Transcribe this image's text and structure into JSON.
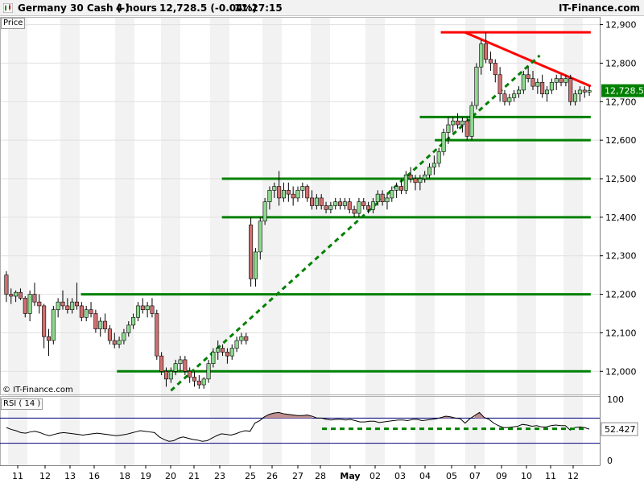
{
  "header": {
    "instrument": "Germany 30 Cash (-)",
    "timeframe": "4 hours",
    "quote": "12,728.5 (-0.04%)",
    "time": "11:27:15",
    "brand": "IT-Finance.com"
  },
  "price_panel_label": "Price",
  "rsi_panel_label": "RSI ( 14 )",
  "copyright": "© IT-Finance.com",
  "colors": {
    "bull": "#90d890",
    "bear": "#d07070",
    "support": "#008000",
    "resistance": "#ff0000",
    "rsi_line": "#000000",
    "rsi_fill": "#c09090",
    "rsi_band": "#000080",
    "last_price_bg": "#008000"
  },
  "chart_data": [
    {
      "type": "candlestick",
      "title": "Germany 30 Cash (-)",
      "ylabel": "Price",
      "ylim": [
        11940,
        12920
      ],
      "y_ticks": [
        "12,000",
        "12,100",
        "12,200",
        "12,300",
        "12,400",
        "12,500",
        "12,600",
        "12,700",
        "12,800",
        "12,900"
      ],
      "x_ticks": [
        "11",
        "12",
        "13",
        "16",
        "18",
        "19",
        "20",
        "21",
        "23",
        "25",
        "26",
        "27",
        "28",
        "May",
        "02",
        "03",
        "04",
        "05",
        "07",
        "09",
        "10",
        "11",
        "12"
      ],
      "last_price": "12,728.5",
      "candles": [
        [
          12250,
          12260,
          12180,
          12200
        ],
        [
          12200,
          12215,
          12175,
          12195
        ],
        [
          12195,
          12210,
          12180,
          12205
        ],
        [
          12205,
          12215,
          12185,
          12190
        ],
        [
          12190,
          12195,
          12140,
          12150
        ],
        [
          12150,
          12210,
          12130,
          12200
        ],
        [
          12200,
          12230,
          12170,
          12180
        ],
        [
          12180,
          12200,
          12150,
          12170
        ],
        [
          12170,
          12175,
          12060,
          12090
        ],
        [
          12090,
          12110,
          12040,
          12080
        ],
        [
          12080,
          12170,
          12070,
          12160
        ],
        [
          12160,
          12190,
          12140,
          12180
        ],
        [
          12180,
          12210,
          12160,
          12170
        ],
        [
          12170,
          12190,
          12150,
          12160
        ],
        [
          12160,
          12190,
          12150,
          12180
        ],
        [
          12180,
          12230,
          12160,
          12170
        ],
        [
          12170,
          12180,
          12130,
          12140
        ],
        [
          12140,
          12170,
          12130,
          12160
        ],
        [
          12160,
          12180,
          12140,
          12150
        ],
        [
          12150,
          12160,
          12100,
          12110
        ],
        [
          12110,
          12140,
          12090,
          12130
        ],
        [
          12130,
          12150,
          12100,
          12110
        ],
        [
          12110,
          12120,
          12070,
          12080
        ],
        [
          12080,
          12100,
          12060,
          12070
        ],
        [
          12070,
          12090,
          12060,
          12080
        ],
        [
          12080,
          12110,
          12070,
          12100
        ],
        [
          12100,
          12130,
          12090,
          12120
        ],
        [
          12120,
          12150,
          12110,
          12140
        ],
        [
          12140,
          12180,
          12130,
          12170
        ],
        [
          12170,
          12190,
          12150,
          12160
        ],
        [
          12160,
          12180,
          12140,
          12170
        ],
        [
          12170,
          12190,
          12140,
          12150
        ],
        [
          12150,
          12160,
          12030,
          12040
        ],
        [
          12040,
          12050,
          11990,
          12000
        ],
        [
          12000,
          12010,
          11960,
          11980
        ],
        [
          11980,
          12010,
          11970,
          12000
        ],
        [
          12000,
          12030,
          11990,
          12020
        ],
        [
          12020,
          12040,
          12000,
          12030
        ],
        [
          12030,
          12040,
          11990,
          12000
        ],
        [
          12000,
          12010,
          11970,
          11985
        ],
        [
          11985,
          12000,
          11960,
          11975
        ],
        [
          11975,
          11990,
          11955,
          11965
        ],
        [
          11965,
          11985,
          11955,
          11980
        ],
        [
          11980,
          12030,
          11970,
          12020
        ],
        [
          12020,
          12060,
          12010,
          12050
        ],
        [
          12050,
          12080,
          12030,
          12060
        ],
        [
          12060,
          12070,
          12040,
          12050
        ],
        [
          12050,
          12060,
          12020,
          12040
        ],
        [
          12040,
          12070,
          12030,
          12060
        ],
        [
          12060,
          12090,
          12050,
          12080
        ],
        [
          12080,
          12100,
          12070,
          12090
        ],
        [
          12090,
          12100,
          12070,
          12080
        ],
        [
          12380,
          12400,
          12220,
          12240
        ],
        [
          12240,
          12320,
          12220,
          12310
        ],
        [
          12310,
          12400,
          12290,
          12390
        ],
        [
          12390,
          12450,
          12380,
          12440
        ],
        [
          12440,
          12480,
          12420,
          12470
        ],
        [
          12470,
          12490,
          12450,
          12480
        ],
        [
          12480,
          12520,
          12430,
          12450
        ],
        [
          12450,
          12490,
          12440,
          12470
        ],
        [
          12470,
          12490,
          12440,
          12460
        ],
        [
          12460,
          12480,
          12430,
          12450
        ],
        [
          12450,
          12480,
          12440,
          12470
        ],
        [
          12470,
          12490,
          12450,
          12480
        ],
        [
          12480,
          12485,
          12440,
          12450
        ],
        [
          12450,
          12470,
          12420,
          12430
        ],
        [
          12430,
          12460,
          12420,
          12450
        ],
        [
          12450,
          12460,
          12420,
          12430
        ],
        [
          12430,
          12440,
          12410,
          12420
        ],
        [
          12420,
          12440,
          12410,
          12430
        ],
        [
          12430,
          12450,
          12420,
          12440
        ],
        [
          12440,
          12450,
          12420,
          12430
        ],
        [
          12430,
          12450,
          12420,
          12440
        ],
        [
          12440,
          12450,
          12410,
          12420
        ],
        [
          12420,
          12430,
          12400,
          12410
        ],
        [
          12410,
          12450,
          12400,
          12440
        ],
        [
          12440,
          12450,
          12420,
          12430
        ],
        [
          12430,
          12440,
          12410,
          12420
        ],
        [
          12420,
          12450,
          12410,
          12440
        ],
        [
          12440,
          12470,
          12430,
          12460
        ],
        [
          12460,
          12470,
          12430,
          12440
        ],
        [
          12440,
          12460,
          12420,
          12450
        ],
        [
          12450,
          12480,
          12440,
          12470
        ],
        [
          12470,
          12490,
          12450,
          12480
        ],
        [
          12480,
          12500,
          12460,
          12470
        ],
        [
          12470,
          12520,
          12460,
          12510
        ],
        [
          12510,
          12530,
          12490,
          12500
        ],
        [
          12500,
          12510,
          12470,
          12490
        ],
        [
          12490,
          12510,
          12470,
          12500
        ],
        [
          12500,
          12520,
          12490,
          12510
        ],
        [
          12510,
          12540,
          12500,
          12530
        ],
        [
          12530,
          12560,
          12510,
          12540
        ],
        [
          12540,
          12580,
          12530,
          12570
        ],
        [
          12570,
          12630,
          12560,
          12620
        ],
        [
          12620,
          12660,
          12590,
          12640
        ],
        [
          12640,
          12660,
          12620,
          12650
        ],
        [
          12650,
          12670,
          12630,
          12640
        ],
        [
          12640,
          12660,
          12620,
          12650
        ],
        [
          12650,
          12660,
          12600,
          12610
        ],
        [
          12610,
          12700,
          12600,
          12690
        ],
        [
          12690,
          12800,
          12680,
          12790
        ],
        [
          12790,
          12860,
          12770,
          12850
        ],
        [
          12850,
          12880,
          12800,
          12810
        ],
        [
          12810,
          12830,
          12780,
          12800
        ],
        [
          12800,
          12810,
          12750,
          12770
        ],
        [
          12770,
          12790,
          12700,
          12720
        ],
        [
          12720,
          12730,
          12690,
          12700
        ],
        [
          12700,
          12720,
          12690,
          12710
        ],
        [
          12710,
          12730,
          12700,
          12720
        ],
        [
          12720,
          12740,
          12710,
          12730
        ],
        [
          12730,
          12780,
          12720,
          12770
        ],
        [
          12770,
          12790,
          12750,
          12760
        ],
        [
          12760,
          12780,
          12730,
          12740
        ],
        [
          12740,
          12760,
          12720,
          12750
        ],
        [
          12750,
          12770,
          12710,
          12720
        ],
        [
          12720,
          12740,
          12700,
          12730
        ],
        [
          12730,
          12760,
          12720,
          12750
        ],
        [
          12750,
          12770,
          12730,
          12760
        ],
        [
          12760,
          12770,
          12740,
          12750
        ],
        [
          12750,
          12770,
          12740,
          12760
        ],
        [
          12760,
          12770,
          12690,
          12700
        ],
        [
          12700,
          12730,
          12690,
          12720
        ],
        [
          12720,
          12740,
          12700,
          12730
        ],
        [
          12730,
          12740,
          12710,
          12725
        ],
        [
          12725,
          12740,
          12715,
          12728.5
        ]
      ],
      "trend_lines": [
        {
          "kind": "support",
          "style": "solid",
          "from": [
            0.195,
            12000
          ],
          "to": [
            0.985,
            12000
          ]
        },
        {
          "kind": "support",
          "style": "solid",
          "from": [
            0.135,
            12200
          ],
          "to": [
            0.985,
            12200
          ]
        },
        {
          "kind": "support",
          "style": "solid",
          "from": [
            0.37,
            12400
          ],
          "to": [
            0.985,
            12400
          ]
        },
        {
          "kind": "support",
          "style": "solid",
          "from": [
            0.37,
            12500
          ],
          "to": [
            0.985,
            12500
          ]
        },
        {
          "kind": "support",
          "style": "solid",
          "from": [
            0.725,
            12600
          ],
          "to": [
            0.985,
            12600
          ]
        },
        {
          "kind": "support",
          "style": "solid",
          "from": [
            0.7,
            12660
          ],
          "to": [
            0.985,
            12660
          ]
        },
        {
          "kind": "resistance",
          "style": "solid",
          "from": [
            0.735,
            12880
          ],
          "to": [
            0.985,
            12880
          ]
        },
        {
          "kind": "resistance",
          "style": "solid",
          "from": [
            0.775,
            12880
          ],
          "to": [
            0.985,
            12740
          ]
        },
        {
          "kind": "support",
          "style": "dashed",
          "from": [
            0.285,
            11950
          ],
          "to": [
            0.9,
            12820
          ]
        }
      ]
    },
    {
      "type": "line",
      "title": "RSI ( 14 )",
      "ylim": [
        0,
        100
      ],
      "y_ticks": [
        "100",
        "0"
      ],
      "bands": [
        70,
        30
      ],
      "last_value": "52.427",
      "dashed_level": 53,
      "values": [
        55,
        52,
        50,
        47,
        46,
        48,
        49,
        47,
        44,
        42,
        44,
        46,
        47,
        46,
        45,
        44,
        43,
        44,
        45,
        46,
        45,
        44,
        43,
        42,
        43,
        44,
        46,
        48,
        50,
        49,
        48,
        47,
        40,
        36,
        33,
        34,
        38,
        40,
        38,
        36,
        35,
        33,
        34,
        38,
        42,
        45,
        44,
        43,
        45,
        48,
        50,
        49,
        62,
        66,
        72,
        76,
        78,
        79,
        77,
        76,
        75,
        74,
        74,
        75,
        73,
        70,
        70,
        68,
        67,
        68,
        68,
        67,
        68,
        66,
        64,
        64,
        65,
        65,
        63,
        64,
        65,
        66,
        67,
        67,
        66,
        68,
        68,
        66,
        67,
        68,
        69,
        71,
        73,
        72,
        70,
        69,
        62,
        69,
        74,
        79,
        71,
        68,
        62,
        58,
        55,
        55,
        56,
        57,
        60,
        59,
        57,
        58,
        56,
        56,
        58,
        59,
        58,
        58,
        51,
        55,
        56,
        55,
        52.427
      ]
    }
  ]
}
